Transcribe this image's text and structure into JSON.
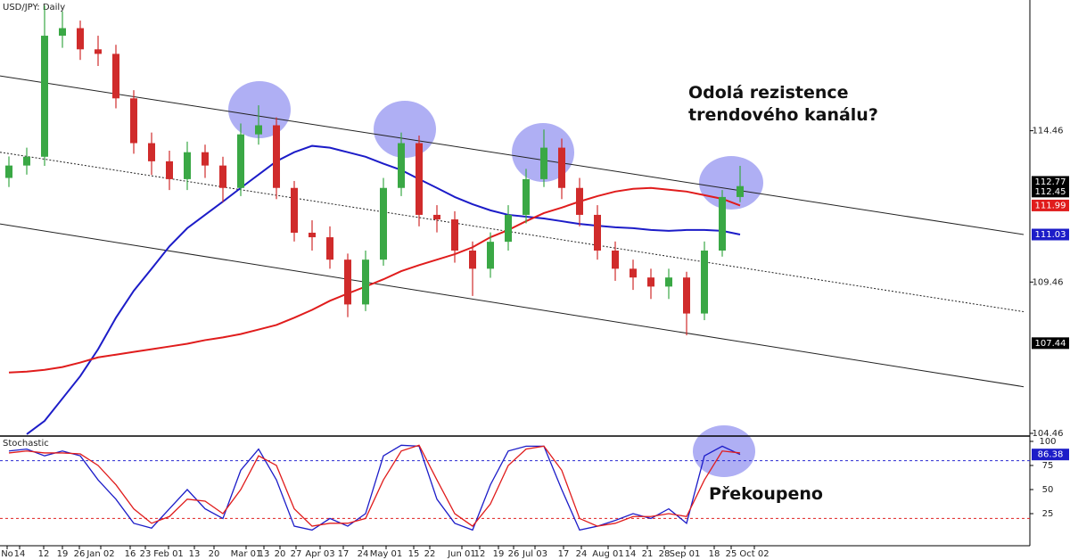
{
  "chart_data": [
    {
      "type": "candlestick",
      "title": "USD/JPY: Daily",
      "x": [
        0,
        1,
        2,
        3,
        4,
        5,
        6,
        7,
        8,
        9,
        10,
        11,
        12,
        13,
        14,
        15,
        16,
        17,
        18,
        19,
        20,
        21,
        22,
        23,
        24,
        25,
        26,
        27,
        28,
        29,
        30,
        31,
        32,
        33,
        34,
        35,
        36,
        37,
        38,
        39,
        40,
        41
      ],
      "open": [
        112.9,
        113.31,
        113.6,
        117.6,
        117.85,
        117.15,
        117.0,
        115.53,
        114.05,
        113.45,
        112.86,
        113.75,
        113.31,
        112.57,
        114.34,
        114.64,
        112.57,
        111.09,
        110.94,
        110.2,
        108.72,
        110.2,
        112.57,
        114.05,
        111.68,
        111.53,
        110.5,
        109.9,
        110.79,
        111.68,
        112.86,
        113.9,
        112.57,
        111.68,
        110.5,
        109.9,
        109.61,
        109.31,
        109.61,
        108.42,
        110.5,
        112.27
      ],
      "high": [
        113.61,
        113.9,
        118.6,
        118.4,
        118.1,
        117.6,
        117.3,
        115.8,
        114.4,
        113.8,
        114.1,
        114.0,
        113.6,
        114.7,
        115.3,
        114.9,
        112.8,
        111.5,
        111.3,
        110.4,
        110.5,
        112.9,
        114.4,
        114.3,
        112.0,
        111.8,
        110.8,
        111.1,
        112.0,
        113.2,
        114.5,
        114.2,
        112.9,
        112.0,
        110.8,
        110.2,
        109.9,
        109.9,
        109.8,
        110.8,
        112.5,
        113.3
      ],
      "low": [
        112.6,
        113.01,
        113.3,
        117.2,
        116.8,
        116.6,
        115.2,
        113.7,
        113.0,
        112.5,
        112.5,
        112.9,
        112.1,
        112.3,
        114.0,
        112.2,
        110.8,
        110.5,
        109.9,
        108.3,
        108.5,
        110.0,
        112.3,
        111.3,
        111.1,
        110.1,
        109.0,
        109.6,
        110.5,
        111.4,
        112.6,
        112.2,
        111.3,
        110.2,
        109.5,
        109.2,
        108.9,
        108.9,
        107.7,
        108.2,
        110.3,
        112.1
      ],
      "close": [
        113.31,
        113.6,
        117.6,
        117.85,
        117.15,
        117.0,
        115.53,
        114.05,
        113.45,
        112.86,
        113.75,
        113.31,
        112.57,
        114.34,
        114.64,
        112.57,
        111.09,
        110.94,
        110.2,
        108.72,
        110.2,
        112.57,
        114.05,
        111.68,
        111.53,
        110.5,
        109.9,
        110.79,
        111.68,
        112.86,
        113.9,
        112.57,
        111.68,
        110.5,
        109.9,
        109.61,
        109.31,
        109.61,
        108.42,
        110.5,
        112.27,
        112.63
      ],
      "color_up": "#3aa845",
      "color_down": "#d02b2b",
      "overlays": [
        {
          "color": "#1c1cc8",
          "values": [
            null,
            104.43,
            104.87,
            105.61,
            106.35,
            107.24,
            108.28,
            109.17,
            109.9,
            110.64,
            111.24,
            111.68,
            112.12,
            112.57,
            113.01,
            113.45,
            113.75,
            113.96,
            113.9,
            113.75,
            113.6,
            113.37,
            113.16,
            112.86,
            112.57,
            112.27,
            112.03,
            111.83,
            111.68,
            111.62,
            111.56,
            111.47,
            111.38,
            111.32,
            111.27,
            111.24,
            111.18,
            111.15,
            111.18,
            111.18,
            111.15,
            111.03
          ]
        },
        {
          "color": "#e01c1c",
          "values": [
            106.47,
            106.5,
            106.56,
            106.65,
            106.8,
            106.97,
            107.06,
            107.15,
            107.24,
            107.33,
            107.42,
            107.54,
            107.63,
            107.74,
            107.89,
            108.04,
            108.28,
            108.54,
            108.84,
            109.08,
            109.31,
            109.55,
            109.82,
            110.02,
            110.2,
            110.38,
            110.61,
            110.94,
            111.18,
            111.47,
            111.74,
            111.92,
            112.12,
            112.3,
            112.45,
            112.54,
            112.57,
            112.51,
            112.45,
            112.33,
            112.21,
            111.99
          ]
        }
      ],
      "channel": [
        {
          "x": [
            -0.5,
            56.9
          ],
          "y": [
            116.27,
            111.03
          ],
          "dashed": false
        },
        {
          "x": [
            -0.5,
            56.9
          ],
          "y": [
            113.75,
            108.48
          ],
          "dashed": true
        },
        {
          "x": [
            -0.5,
            56.9
          ],
          "y": [
            111.38,
            106.0
          ],
          "dashed": false
        }
      ],
      "xlim": [
        -0.5,
        57.25
      ],
      "ylim": [
        104.4,
        118.78
      ],
      "yticks": [
        114.46,
        109.46,
        104.46
      ],
      "price_labels": [
        {
          "value": 112.77,
          "color": "#000000"
        },
        {
          "value": 112.45,
          "color": "#000000"
        },
        {
          "value": 111.99,
          "color": "#e01c1c"
        },
        {
          "value": 111.03,
          "color": "#1c1cc8"
        },
        {
          "value": 107.44,
          "color": "#000000"
        }
      ],
      "annotations": [
        "Odolá rezistence",
        "trendového kanálu?"
      ]
    },
    {
      "type": "stochastic",
      "title": "Stochastic",
      "x": [
        0,
        1,
        2,
        3,
        4,
        5,
        6,
        7,
        8,
        9,
        10,
        11,
        12,
        13,
        14,
        15,
        16,
        17,
        18,
        19,
        20,
        21,
        22,
        23,
        24,
        25,
        26,
        27,
        28,
        29,
        30,
        31,
        32,
        33,
        34,
        35,
        36,
        37,
        38,
        39,
        40,
        41
      ],
      "series": [
        {
          "color": "#1c1cc8",
          "values": [
            90,
            92,
            85,
            90,
            85,
            60,
            40,
            15,
            10,
            30,
            50,
            30,
            20,
            70,
            92,
            60,
            12,
            8,
            20,
            12,
            25,
            85,
            96,
            95,
            40,
            15,
            8,
            55,
            90,
            95,
            95,
            50,
            8,
            12,
            18,
            25,
            20,
            30,
            15,
            85,
            95,
            86.38
          ]
        },
        {
          "color": "#e01c1c",
          "values": [
            88,
            90,
            88,
            88,
            87,
            75,
            55,
            30,
            15,
            22,
            40,
            38,
            25,
            50,
            85,
            75,
            30,
            12,
            15,
            15,
            20,
            60,
            90,
            96,
            60,
            25,
            12,
            35,
            75,
            92,
            95,
            70,
            20,
            12,
            15,
            22,
            22,
            25,
            22,
            60,
            90,
            88
          ]
        }
      ],
      "levels": [
        {
          "value": 80,
          "color": "#2a2ad0"
        },
        {
          "value": 20,
          "color": "#e02020"
        }
      ],
      "xlim": [
        -0.5,
        57.25
      ],
      "ylim": [
        -8.3,
        104.6
      ],
      "yticks": [
        100,
        75,
        50,
        25
      ],
      "price_labels": [
        {
          "value": 86.38,
          "color": "#1c1cc8"
        }
      ],
      "annotations": [
        "Překoupeno"
      ],
      "xticks": [
        {
          "value": -0.1,
          "label": "No"
        },
        {
          "value": 0.6,
          "label": "14"
        },
        {
          "value": 1.95,
          "label": "12"
        },
        {
          "value": 3,
          "label": "19"
        },
        {
          "value": 3.95,
          "label": "26"
        },
        {
          "value": 5.15,
          "label": "Jan 02"
        },
        {
          "value": 6.8,
          "label": "16"
        },
        {
          "value": 7.65,
          "label": "23"
        },
        {
          "value": 8.95,
          "label": "Feb 01"
        },
        {
          "value": 10.4,
          "label": "13"
        },
        {
          "value": 11.5,
          "label": "20"
        },
        {
          "value": 13.3,
          "label": "Mar 01"
        },
        {
          "value": 14.3,
          "label": "13"
        },
        {
          "value": 15.2,
          "label": "20"
        },
        {
          "value": 16.1,
          "label": "27"
        },
        {
          "value": 17.45,
          "label": "Apr 03"
        },
        {
          "value": 18.75,
          "label": "17"
        },
        {
          "value": 19.85,
          "label": "24"
        },
        {
          "value": 21.15,
          "label": "May 01"
        },
        {
          "value": 22.7,
          "label": "15"
        },
        {
          "value": 23.6,
          "label": "22"
        },
        {
          "value": 25.4,
          "label": "Jun 01"
        },
        {
          "value": 26.4,
          "label": "12"
        },
        {
          "value": 27.45,
          "label": "19"
        },
        {
          "value": 28.3,
          "label": "26"
        },
        {
          "value": 29.5,
          "label": "Jul 03"
        },
        {
          "value": 31.1,
          "label": "17"
        },
        {
          "value": 32.1,
          "label": "24"
        },
        {
          "value": 33.6,
          "label": "Aug 01"
        },
        {
          "value": 34.85,
          "label": "14"
        },
        {
          "value": 35.8,
          "label": "21"
        },
        {
          "value": 36.75,
          "label": "28"
        },
        {
          "value": 37.9,
          "label": "Sep 01"
        },
        {
          "value": 39.55,
          "label": "18"
        },
        {
          "value": 40.5,
          "label": "25"
        },
        {
          "value": 41.8,
          "label": "Oct 02"
        }
      ]
    }
  ]
}
